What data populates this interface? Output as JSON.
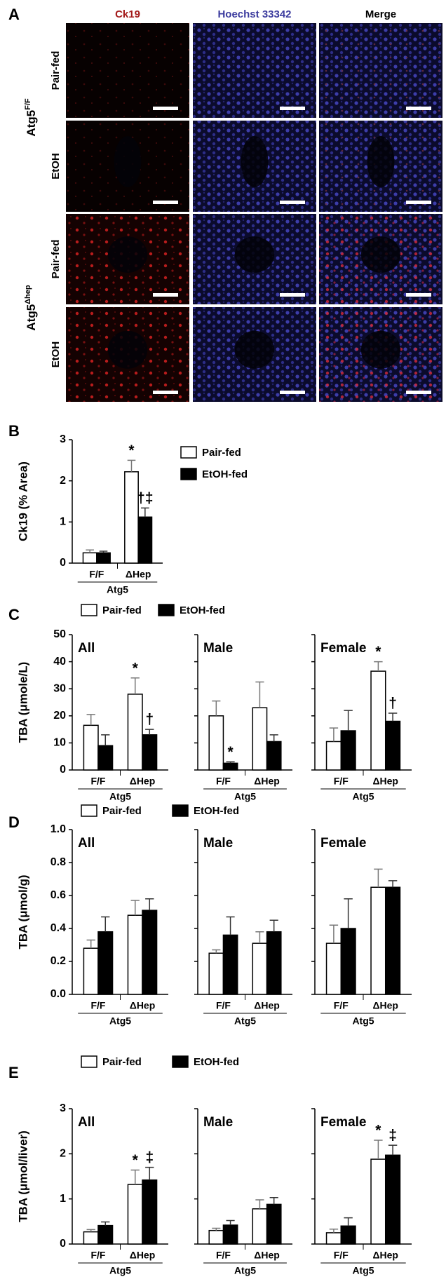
{
  "panel_a": {
    "label": "A",
    "columns": [
      {
        "name": "Ck19",
        "color": "#a31a1a"
      },
      {
        "name": "Hoechst 33342",
        "color": "#3b3b9e"
      },
      {
        "name": "Merge",
        "color": "#000000"
      }
    ],
    "groups": [
      {
        "genotype": "Atg5",
        "genotype_sup": "F/F",
        "rows": [
          "Pair-fed",
          "EtOH"
        ]
      },
      {
        "genotype": "Atg5",
        "genotype_sup": "Δhep",
        "rows": [
          "Pair-fed",
          "EtOH"
        ]
      }
    ]
  },
  "chart_data": [
    {
      "type": "bar",
      "label": "B",
      "ylabel": "Ck19 (% Area)",
      "ylim": [
        0,
        3
      ],
      "yticks": [
        0,
        1,
        2,
        3
      ],
      "series": [
        {
          "name": "Pair-fed",
          "color": "#ffffff"
        },
        {
          "name": "EtOH-fed",
          "color": "#000000"
        }
      ],
      "subplots": [
        {
          "categories": [
            "F/F",
            "ΔHep"
          ],
          "group_label": "Atg5",
          "values": [
            [
              0.25,
              2.22
            ],
            [
              0.25,
              1.12
            ]
          ],
          "errors": [
            [
              0.07,
              0.28
            ],
            [
              0.04,
              0.22
            ]
          ],
          "annotations": [
            [
              null,
              "*"
            ],
            [
              null,
              "†‡"
            ]
          ]
        }
      ]
    },
    {
      "type": "bar",
      "label": "C",
      "ylabel": "TBA (μmole/L)",
      "ylim": [
        0,
        50
      ],
      "yticks": [
        0,
        10,
        20,
        30,
        40,
        50
      ],
      "series": [
        {
          "name": "Pair-fed",
          "color": "#ffffff"
        },
        {
          "name": "EtOH-fed",
          "color": "#000000"
        }
      ],
      "subplots": [
        {
          "title": "All",
          "categories": [
            "F/F",
            "ΔHep"
          ],
          "group_label": "Atg5",
          "values": [
            [
              16.5,
              28
            ],
            [
              9,
              13
            ]
          ],
          "errors": [
            [
              4,
              6
            ],
            [
              4,
              2
            ]
          ],
          "annotations": [
            [
              null,
              "*"
            ],
            [
              null,
              "†"
            ]
          ]
        },
        {
          "title": "Male",
          "categories": [
            "F/F",
            "ΔHep"
          ],
          "group_label": "Atg5",
          "values": [
            [
              20,
              23
            ],
            [
              2.5,
              10.5
            ]
          ],
          "errors": [
            [
              5.5,
              9.5
            ],
            [
              0.5,
              2.5
            ]
          ],
          "annotations": [
            [
              null,
              null
            ],
            [
              "*",
              null
            ]
          ]
        },
        {
          "title": "Female",
          "categories": [
            "F/F",
            "ΔHep"
          ],
          "group_label": "Atg5",
          "values": [
            [
              10.5,
              36.5
            ],
            [
              14.5,
              18
            ]
          ],
          "errors": [
            [
              5,
              3.5
            ],
            [
              7.5,
              3
            ]
          ],
          "annotations": [
            [
              null,
              "*"
            ],
            [
              null,
              "†"
            ]
          ]
        }
      ]
    },
    {
      "type": "bar",
      "label": "D",
      "ylabel": "TBA (μmol/g)",
      "ylim": [
        0,
        1
      ],
      "yticks": [
        {
          "value": 0,
          "label": "0.0"
        },
        {
          "value": 0.2,
          "label": "0.2"
        },
        {
          "value": 0.4,
          "label": "0.4"
        },
        {
          "value": 0.6,
          "label": "0.6"
        },
        {
          "value": 0.8,
          "label": "0.8"
        },
        {
          "value": 1,
          "label": "1.0"
        }
      ],
      "series": [
        {
          "name": "Pair-fed",
          "color": "#ffffff"
        },
        {
          "name": "EtOH-fed",
          "color": "#000000"
        }
      ],
      "subplots": [
        {
          "title": "All",
          "categories": [
            "F/F",
            "ΔHep"
          ],
          "group_label": "Atg5",
          "values": [
            [
              0.28,
              0.48
            ],
            [
              0.38,
              0.51
            ]
          ],
          "errors": [
            [
              0.05,
              0.09
            ],
            [
              0.09,
              0.07
            ]
          ]
        },
        {
          "title": "Male",
          "categories": [
            "F/F",
            "ΔHep"
          ],
          "group_label": "Atg5",
          "values": [
            [
              0.25,
              0.31
            ],
            [
              0.36,
              0.38
            ]
          ],
          "errors": [
            [
              0.02,
              0.07
            ],
            [
              0.11,
              0.07
            ]
          ]
        },
        {
          "title": "Female",
          "categories": [
            "F/F",
            "ΔHep"
          ],
          "group_label": "Atg5",
          "values": [
            [
              0.31,
              0.65
            ],
            [
              0.4,
              0.65
            ]
          ],
          "errors": [
            [
              0.11,
              0.11
            ],
            [
              0.18,
              0.04
            ]
          ]
        }
      ]
    },
    {
      "type": "bar",
      "label": "E",
      "ylabel": "TBA (μmol/liver)",
      "ylim": [
        0,
        3
      ],
      "yticks": [
        0,
        1,
        2,
        3
      ],
      "series": [
        {
          "name": "Pair-fed",
          "color": "#ffffff"
        },
        {
          "name": "EtOH-fed",
          "color": "#000000"
        }
      ],
      "subplots": [
        {
          "title": "All",
          "categories": [
            "F/F",
            "ΔHep"
          ],
          "group_label": "Atg5",
          "values": [
            [
              0.27,
              1.32
            ],
            [
              0.41,
              1.42
            ]
          ],
          "errors": [
            [
              0.05,
              0.32
            ],
            [
              0.08,
              0.28
            ]
          ],
          "annotations": [
            [
              null,
              "*"
            ],
            [
              null,
              "‡"
            ]
          ]
        },
        {
          "title": "Male",
          "categories": [
            "F/F",
            "ΔHep"
          ],
          "group_label": "Atg5",
          "values": [
            [
              0.3,
              0.78
            ],
            [
              0.42,
              0.88
            ]
          ],
          "errors": [
            [
              0.05,
              0.2
            ],
            [
              0.1,
              0.15
            ]
          ]
        },
        {
          "title": "Female",
          "categories": [
            "F/F",
            "ΔHep"
          ],
          "group_label": "Atg5",
          "values": [
            [
              0.25,
              1.88
            ],
            [
              0.4,
              1.97
            ]
          ],
          "errors": [
            [
              0.08,
              0.42
            ],
            [
              0.18,
              0.22
            ]
          ],
          "annotations": [
            [
              null,
              "*"
            ],
            [
              null,
              "‡"
            ]
          ]
        }
      ]
    }
  ]
}
